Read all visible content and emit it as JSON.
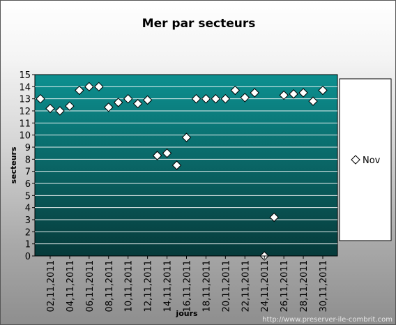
{
  "chart_data": {
    "type": "scatter",
    "title": "Mer par secteurs",
    "xlabel": "jours",
    "ylabel": "secteurs",
    "ylim": [
      0,
      15
    ],
    "yticks": [
      "0",
      "1",
      "2",
      "3",
      "4",
      "5",
      "6",
      "7",
      "8",
      "9",
      "10",
      "11",
      "12",
      "13",
      "14",
      "15"
    ],
    "x_tick_labels": [
      "02,11,2011",
      "04,11,2011",
      "06,11,2011",
      "08,11,2011",
      "10,11,2011",
      "12,11,2011",
      "14,11,2011",
      "16,11,2011",
      "18,11,2011",
      "20,11,2011",
      "22,11,2011",
      "24,11,2011",
      "26,11,2011",
      "28,11,2011",
      "30,11,2011"
    ],
    "x": [
      "01,11,2011",
      "02,11,2011",
      "03,11,2011",
      "04,11,2011",
      "05,11,2011",
      "06,11,2011",
      "07,11,2011",
      "08,11,2011",
      "09,11,2011",
      "10,11,2011",
      "11,11,2011",
      "12,11,2011",
      "13,11,2011",
      "14,11,2011",
      "15,11,2011",
      "16,11,2011",
      "17,11,2011",
      "18,11,2011",
      "19,11,2011",
      "20,11,2011",
      "21,11,2011",
      "22,11,2011",
      "23,11,2011",
      "24,11,2011",
      "25,11,2011",
      "26,11,2011",
      "27,11,2011",
      "28,11,2011",
      "29,11,2011",
      "30,11,2011"
    ],
    "series": [
      {
        "name": "Nov",
        "values": [
          13.0,
          12.2,
          12.0,
          12.4,
          13.7,
          14.0,
          14.0,
          12.3,
          12.7,
          13.0,
          12.6,
          12.9,
          8.3,
          8.5,
          7.5,
          9.8,
          13.0,
          13.0,
          13.0,
          13.0,
          13.7,
          13.1,
          13.5,
          0.0,
          3.2,
          13.3,
          13.4,
          13.5,
          12.8,
          13.7
        ]
      }
    ],
    "legend_position": "right",
    "grid": true,
    "colors": {
      "plot_top": "#0d9090",
      "plot_bottom": "#063a3a",
      "gridline": "#ffffff",
      "marker_fill": "#ffffff",
      "marker_stroke": "#000000"
    }
  },
  "footer": {
    "watermark": "http://www.preserver-ile-combrit.com"
  }
}
